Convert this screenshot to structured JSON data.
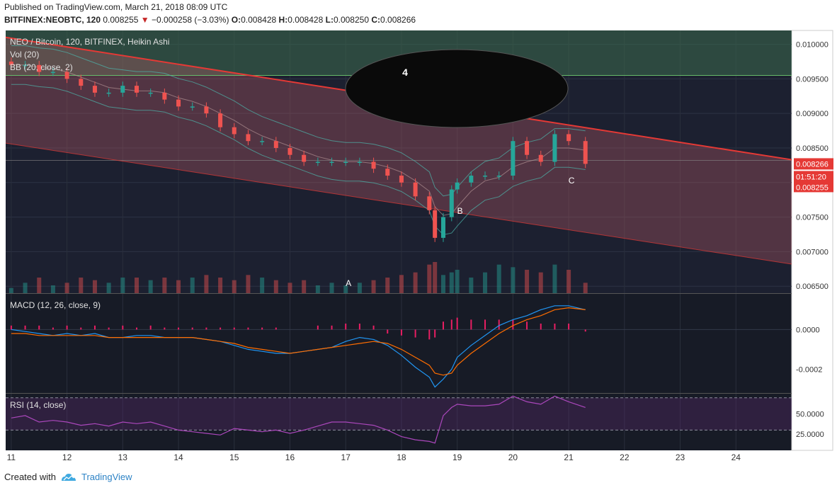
{
  "header": {
    "published": "Published on TradingView.com, March 21, 2018 08:09 UTC",
    "symbol": "BITFINEX:NEOBTC, 120",
    "price": "0.008255",
    "change_arrow": "▼",
    "change": "−0.000258 (−3.03%)",
    "o_label": "O:",
    "o": "0.008428",
    "h_label": "H:",
    "h": "0.008428",
    "l_label": "L:",
    "l": "0.008250",
    "c_label": "C:",
    "c": "0.008266"
  },
  "panes": {
    "main": {
      "title": "NEO / Bitcoin, 120, BITFINEX, Heikin Ashi",
      "vol": "Vol (20)",
      "bb": "BB (20, close, 2)"
    },
    "macd": {
      "title": "MACD (12, 26, close, 9)"
    },
    "rsi": {
      "title": "RSI (14, close)"
    }
  },
  "price_axis": {
    "ticks": [
      "0.010000",
      "0.009500",
      "0.009000",
      "0.008500",
      "0.008000",
      "0.007500",
      "0.007000",
      "0.006500"
    ],
    "tick_values": [
      0.01,
      0.0095,
      0.009,
      0.0085,
      0.008,
      0.0075,
      0.007,
      0.0065
    ]
  },
  "macd_axis": {
    "ticks": [
      "0.0000",
      "-0.0002"
    ],
    "tick_values": [
      0,
      -0.0002
    ]
  },
  "rsi_axis": {
    "ticks": [
      "50.0000",
      "25.0000"
    ],
    "tick_values": [
      50,
      25
    ],
    "band": [
      30,
      70
    ]
  },
  "time_axis": {
    "ticks": [
      "11",
      "12",
      "13",
      "14",
      "15",
      "16",
      "17",
      "18",
      "19",
      "20",
      "21",
      "22",
      "23",
      "24"
    ]
  },
  "price_labels": {
    "close": "0.008266",
    "countdown": "01:51:20",
    "last": "0.008255"
  },
  "annotations": {
    "circle": "4",
    "a": "A",
    "b": "B",
    "c": "C"
  },
  "footer": {
    "created": "Created with",
    "brand": "TradingView"
  },
  "colors": {
    "up": "#26a69a",
    "down": "#ef5350",
    "trend": "#e53935",
    "macd": "#2196f3",
    "signal": "#ff6d00",
    "hist": "#e91e63",
    "rsi": "#ab47bc",
    "bb": "#4db6ac",
    "bg": "#1c2030",
    "label_red": "#e53935"
  },
  "chart_data": {
    "type": "candlestick",
    "style": "Heikin Ashi",
    "x": [
      "11",
      "11.25",
      "11.5",
      "11.75",
      "12",
      "12.25",
      "12.5",
      "12.75",
      "13",
      "13.25",
      "13.5",
      "13.75",
      "14",
      "14.25",
      "14.5",
      "14.75",
      "15",
      "15.25",
      "15.5",
      "15.75",
      "16",
      "16.25",
      "16.5",
      "16.75",
      "17",
      "17.25",
      "17.5",
      "17.75",
      "18",
      "18.25",
      "18.5",
      "18.6",
      "18.75",
      "18.9",
      "19",
      "19.25",
      "19.5",
      "19.75",
      "20",
      "20.25",
      "20.5",
      "20.75",
      "21",
      "21.3"
    ],
    "close": [
      0.0097,
      0.0097,
      0.0096,
      0.0096,
      0.0095,
      0.0094,
      0.0093,
      0.0093,
      0.0094,
      0.0093,
      0.0093,
      0.0092,
      0.0091,
      0.0091,
      0.009,
      0.0088,
      0.0087,
      0.0086,
      0.0086,
      0.0085,
      0.0084,
      0.0083,
      0.0083,
      0.0083,
      0.0083,
      0.0083,
      0.0082,
      0.0081,
      0.008,
      0.0078,
      0.0076,
      0.0072,
      0.0075,
      0.0079,
      0.008,
      0.0081,
      0.0081,
      0.0081,
      0.0086,
      0.0084,
      0.0083,
      0.0087,
      0.0086,
      0.00827
    ],
    "volume": [
      10,
      20,
      30,
      15,
      20,
      30,
      25,
      20,
      30,
      30,
      25,
      30,
      25,
      30,
      35,
      30,
      25,
      35,
      30,
      25,
      20,
      25,
      15,
      20,
      15,
      20,
      25,
      30,
      35,
      40,
      55,
      60,
      35,
      40,
      45,
      30,
      40,
      55,
      50,
      45,
      40,
      55,
      45,
      20
    ],
    "price_ylim": [
      0.0064,
      0.0102
    ],
    "macd": [
      0.0,
      -1e-05,
      -2e-05,
      -3e-05,
      -2e-05,
      -3e-05,
      -2e-05,
      -4e-05,
      -4e-05,
      -3e-05,
      -3e-05,
      -4e-05,
      -4e-05,
      -4e-05,
      -5e-05,
      -6e-05,
      -8e-05,
      -0.0001,
      -0.00011,
      -0.00012,
      -0.00012,
      -0.00011,
      -0.0001,
      -9e-05,
      -6e-05,
      -4e-05,
      -5e-05,
      -8e-05,
      -0.00013,
      -0.00019,
      -0.00024,
      -0.00029,
      -0.00025,
      -0.0002,
      -0.00014,
      -8e-05,
      -3e-05,
      2e-05,
      5e-05,
      7e-05,
      0.0001,
      0.00012,
      0.00012,
      0.0001
    ],
    "signal": [
      -2e-05,
      -2e-05,
      -3e-05,
      -3e-05,
      -3e-05,
      -3e-05,
      -3e-05,
      -4e-05,
      -4e-05,
      -4e-05,
      -4e-05,
      -4e-05,
      -4e-05,
      -4e-05,
      -5e-05,
      -6e-05,
      -7e-05,
      -9e-05,
      -0.0001,
      -0.00011,
      -0.00012,
      -0.00011,
      -0.0001,
      -9e-05,
      -8e-05,
      -7e-05,
      -6e-05,
      -7e-05,
      -0.0001,
      -0.00014,
      -0.00018,
      -0.00022,
      -0.00023,
      -0.00022,
      -0.00018,
      -0.00012,
      -7e-05,
      -2e-05,
      2e-05,
      5e-05,
      7e-05,
      0.0001,
      0.00011,
      0.0001
    ],
    "histogram": [
      2e-05,
      2e-05,
      2e-05,
      1e-05,
      2e-05,
      1e-05,
      2e-05,
      1e-05,
      2e-05,
      1e-05,
      2e-05,
      1e-05,
      1e-05,
      1e-05,
      1e-05,
      1e-05,
      1e-05,
      1e-05,
      1e-05,
      1e-05,
      0.0,
      0.0,
      2e-05,
      2e-05,
      3e-05,
      3e-05,
      2e-05,
      -2e-05,
      -3e-05,
      -4e-05,
      -5e-05,
      -4e-05,
      4e-05,
      5e-05,
      6e-05,
      5e-05,
      5e-05,
      5e-05,
      5e-05,
      4e-05,
      3e-05,
      3e-05,
      3e-05,
      -1e-05
    ],
    "macd_ylim": [
      -0.00032,
      0.00018
    ],
    "rsi": [
      45,
      48,
      40,
      42,
      40,
      36,
      38,
      35,
      40,
      38,
      40,
      35,
      30,
      28,
      26,
      24,
      32,
      30,
      28,
      30,
      26,
      30,
      35,
      40,
      40,
      38,
      36,
      30,
      22,
      18,
      16,
      14,
      48,
      58,
      62,
      60,
      60,
      62,
      72,
      65,
      62,
      72,
      65,
      58
    ],
    "rsi_ylim": [
      5,
      75
    ]
  }
}
